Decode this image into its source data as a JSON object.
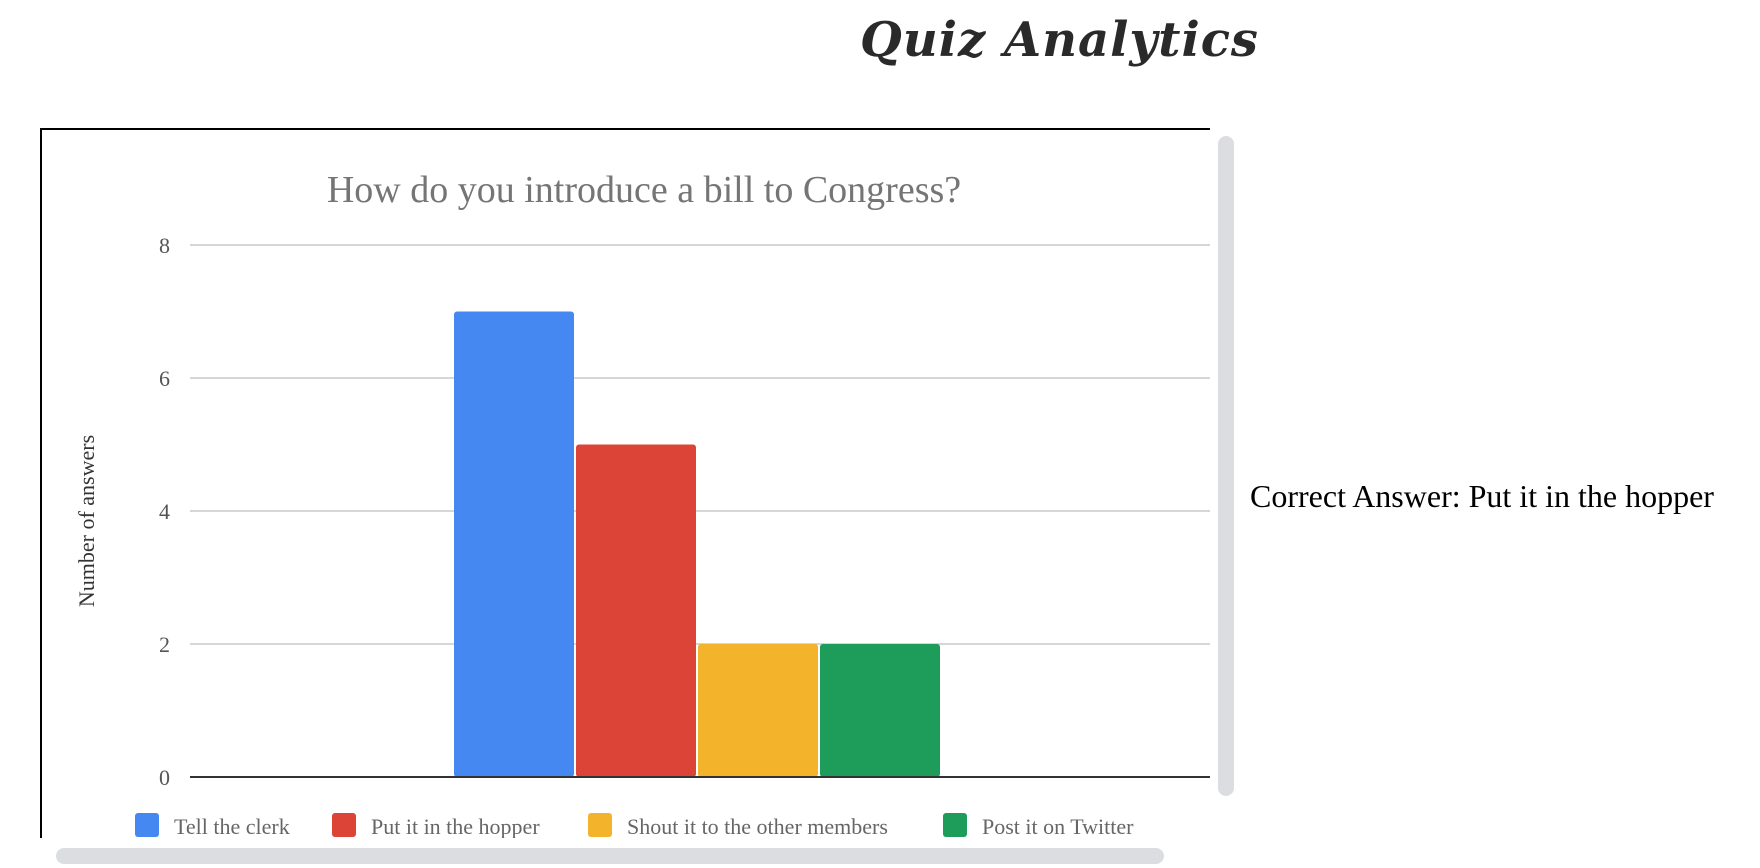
{
  "page": {
    "title": "Quiz Analytics",
    "correct_answer_label": "Correct Answer:",
    "correct_answer_value": "Put it in the hopper"
  },
  "chart_data": {
    "type": "bar",
    "title": "How do you introduce a bill to Congress?",
    "xlabel": "",
    "ylabel": "Number of answers",
    "ylim": [
      0,
      8
    ],
    "yticks": [
      0,
      2,
      4,
      6,
      8
    ],
    "grid": true,
    "legend_position": "bottom",
    "series": [
      {
        "name": "Tell the clerk",
        "value": 7,
        "color": "#4688f1"
      },
      {
        "name": "Put it in the hopper",
        "value": 5,
        "color": "#db4437"
      },
      {
        "name": "Shout it to the other members",
        "value": 2,
        "color": "#f3b32b"
      },
      {
        "name": "Post it on Twitter",
        "value": 2,
        "color": "#1e9c5a"
      }
    ]
  }
}
